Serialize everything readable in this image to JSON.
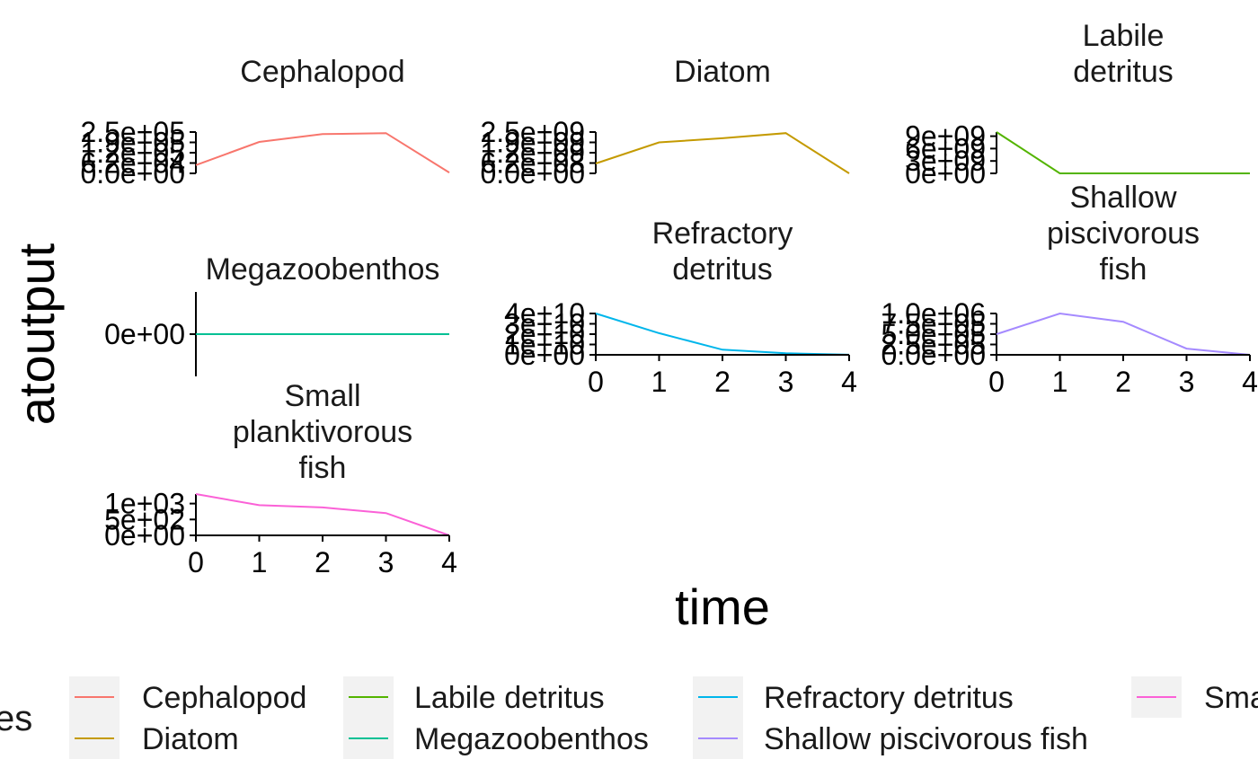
{
  "chart_data": {
    "type": "line",
    "layout": "faceted",
    "xlabel": "time",
    "ylabel": "atoutput",
    "legend": {
      "title": "es",
      "position": "bottom",
      "entries": [
        "Cephalopod",
        "Diatom",
        "Labile detritus",
        "Megazoobenthos",
        "Refractory detritus",
        "Shallow piscivorous fish",
        "Sma"
      ]
    },
    "x": [
      0,
      1,
      2,
      3,
      4
    ],
    "xlim": [
      0,
      4
    ],
    "xticks": [
      "0",
      "1",
      "2",
      "3",
      "4"
    ],
    "facets": [
      {
        "title": [
          "Cephalopod"
        ],
        "color": "#F8766D",
        "values": [
          50000,
          190000,
          237500,
          243750,
          5000
        ],
        "ylim": [
          0,
          250000
        ],
        "yticks": [
          {
            "v": 0,
            "t": "0.0e+00"
          },
          {
            "v": 62500,
            "t": "6.2e+04"
          },
          {
            "v": 125000,
            "t": "1.2e+05"
          },
          {
            "v": 187500,
            "t": "1.9e+05"
          },
          {
            "v": 250000,
            "t": "2.5e+05"
          }
        ]
      },
      {
        "title": [
          "Diatom"
        ],
        "color": "#C49A00",
        "values": [
          600000000,
          1875000000,
          2125000000,
          2437500000,
          0
        ],
        "ylim": [
          0,
          2500000000
        ],
        "yticks": [
          {
            "v": 0,
            "t": "0.0e+00"
          },
          {
            "v": 625000000,
            "t": "6.2e+08"
          },
          {
            "v": 1250000000,
            "t": "1.2e+09"
          },
          {
            "v": 1875000000,
            "t": "1.9e+09"
          },
          {
            "v": 2500000000,
            "t": "2.5e+09"
          }
        ]
      },
      {
        "title": [
          "Labile",
          "detritus"
        ],
        "color": "#53B400",
        "values": [
          10000000000,
          0,
          0,
          0,
          0
        ],
        "ylim": [
          0,
          10000000000
        ],
        "yticks": [
          {
            "v": 0,
            "t": "0e+00"
          },
          {
            "v": 3000000000,
            "t": "3e+09"
          },
          {
            "v": 6000000000,
            "t": "6e+09"
          },
          {
            "v": 9000000000,
            "t": "9e+09"
          }
        ]
      },
      {
        "title": [
          "Megazoobenthos"
        ],
        "color": "#00C094",
        "values": [
          0,
          0,
          0,
          0,
          0
        ],
        "ylim": [
          -1,
          1
        ],
        "yticks": [
          {
            "v": 0,
            "t": "0e+00"
          }
        ]
      },
      {
        "title": [
          "Refractory",
          "detritus"
        ],
        "color": "#00B6EB",
        "values": [
          40000000000,
          21000000000,
          5000000000,
          1500000000,
          100000000
        ],
        "ylim": [
          0,
          40000000000
        ],
        "yticks": [
          {
            "v": 0,
            "t": "0e+00"
          },
          {
            "v": 10000000000,
            "t": "1e+10"
          },
          {
            "v": 20000000000,
            "t": "2e+10"
          },
          {
            "v": 30000000000,
            "t": "3e+10"
          },
          {
            "v": 40000000000,
            "t": "4e+10"
          }
        ]
      },
      {
        "title": [
          "Shallow",
          "piscivorous",
          "fish"
        ],
        "color": "#A58AFF",
        "values": [
          500000,
          1000000,
          800000,
          150000,
          0
        ],
        "ylim": [
          0,
          1000000
        ],
        "yticks": [
          {
            "v": 0,
            "t": "0.0e+00"
          },
          {
            "v": 250000,
            "t": "2.5e+05"
          },
          {
            "v": 500000,
            "t": "5.0e+05"
          },
          {
            "v": 750000,
            "t": "7.5e+05"
          },
          {
            "v": 1000000,
            "t": "1.0e+06"
          }
        ]
      },
      {
        "title": [
          "Small",
          "planktivorous",
          "fish"
        ],
        "color": "#FB61D7",
        "values": [
          1300,
          950,
          880,
          700,
          0
        ],
        "ylim": [
          0,
          1300
        ],
        "yticks": [
          {
            "v": 0,
            "t": "0e+00"
          },
          {
            "v": 500,
            "t": "5e+02"
          },
          {
            "v": 1000,
            "t": "1e+03"
          }
        ]
      }
    ]
  }
}
